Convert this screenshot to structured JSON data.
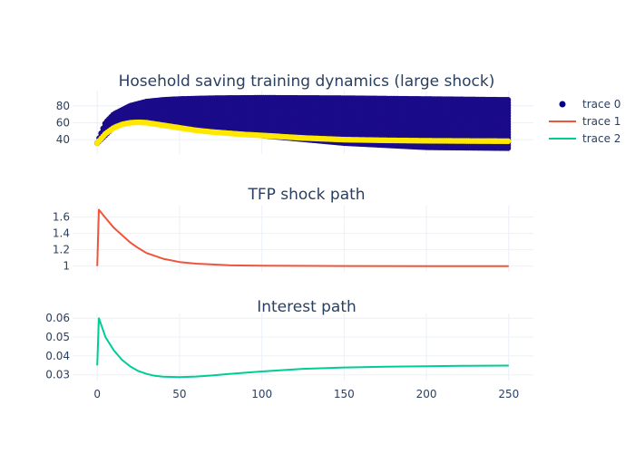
{
  "chart_data": [
    {
      "type": "scatter",
      "title": "Hosehold saving training dynamics (large shock)",
      "xlim": [
        -15,
        265
      ],
      "ylim": [
        23,
        98
      ],
      "y_ticks": [
        40,
        60,
        80
      ],
      "series": [
        {
          "name": "trace 0",
          "kind": "band-markers",
          "color": "#1a0b8a",
          "upper": {
            "x": [
              0,
              5,
              10,
              20,
              30,
              40,
              50,
              70,
              100,
              150,
              200,
              250
            ],
            "y": [
              36,
              60,
              70,
              80,
              85,
              87,
              88,
              89,
              89.5,
              89,
              88,
              87
            ]
          },
          "lower": {
            "x": [
              0,
              10,
              20,
              30,
              40,
              60,
              80,
              100,
              150,
              200,
              250
            ],
            "y": [
              36,
              55,
              62,
              62,
              60,
              55,
              50,
              45,
              36,
              31,
              30
            ]
          }
        },
        {
          "name": "",
          "kind": "markers",
          "color": "#ffe800",
          "x": [
            0,
            5,
            10,
            15,
            20,
            25,
            30,
            35,
            40,
            50,
            60,
            70,
            80,
            90,
            100,
            125,
            150,
            175,
            200,
            225,
            250
          ],
          "y": [
            36,
            47,
            54,
            58,
            60,
            60.5,
            60,
            58.5,
            57,
            54,
            51,
            49,
            47.5,
            46,
            45,
            42,
            40,
            39.2,
            38.7,
            38.4,
            38.2
          ]
        }
      ]
    },
    {
      "type": "line",
      "title": "TFP shock path",
      "xlim": [
        -15,
        265
      ],
      "ylim": [
        0.93,
        1.74
      ],
      "y_ticks": [
        1,
        1.2,
        1.4,
        1.6
      ],
      "y_tick_labels": [
        "1",
        "1.2",
        "1.4",
        "1.6"
      ],
      "series": [
        {
          "name": "trace 1",
          "color": "#ef553b",
          "x": [
            0,
            1,
            5,
            10,
            15,
            20,
            25,
            30,
            40,
            50,
            60,
            70,
            80,
            100,
            150,
            200,
            250
          ],
          "y": [
            1.0,
            1.69,
            1.59,
            1.47,
            1.38,
            1.29,
            1.22,
            1.16,
            1.09,
            1.05,
            1.03,
            1.02,
            1.01,
            1.005,
            1.001,
            1.0,
            1.0
          ]
        }
      ]
    },
    {
      "type": "line",
      "title": "Interest path",
      "xlim": [
        -15,
        265
      ],
      "ylim": [
        0.027,
        0.0625
      ],
      "y_ticks": [
        0.03,
        0.04,
        0.05,
        0.06
      ],
      "y_tick_labels": [
        "0.03",
        "0.04",
        "0.05",
        "0.06"
      ],
      "x_ticks": [
        0,
        50,
        100,
        150,
        200,
        250
      ],
      "series": [
        {
          "name": "trace 2",
          "color": "#00cc96",
          "x": [
            0,
            1,
            5,
            10,
            15,
            20,
            25,
            30,
            35,
            40,
            50,
            60,
            70,
            80,
            100,
            125,
            150,
            175,
            200,
            225,
            250
          ],
          "y": [
            0.035,
            0.06,
            0.05,
            0.043,
            0.038,
            0.0345,
            0.032,
            0.0305,
            0.0295,
            0.029,
            0.0288,
            0.0291,
            0.0297,
            0.0305,
            0.0318,
            0.0332,
            0.0339,
            0.0343,
            0.0346,
            0.0348,
            0.0349
          ]
        }
      ]
    }
  ],
  "legend": {
    "placement": "top-right",
    "items": [
      {
        "label": "trace 0",
        "kind": "marker",
        "color": "#00008b"
      },
      {
        "label": "trace 1",
        "kind": "line",
        "color": "#ef553b"
      },
      {
        "label": "trace 2",
        "kind": "line",
        "color": "#00cc96"
      }
    ]
  }
}
